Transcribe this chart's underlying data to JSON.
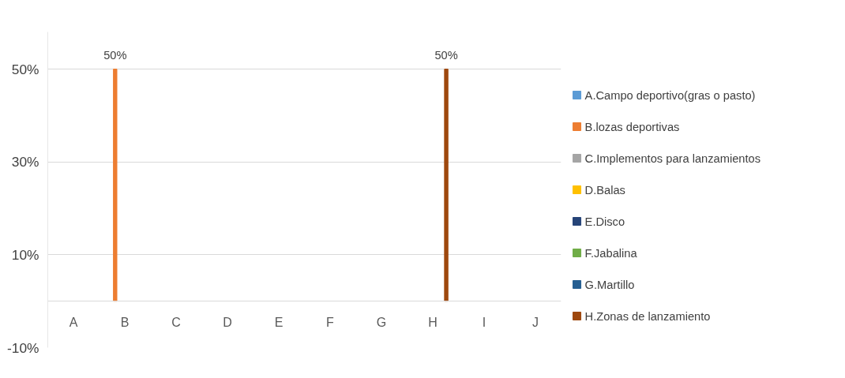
{
  "chart_data": {
    "type": "bar",
    "categories": [
      "A",
      "B",
      "C",
      "D",
      "E",
      "F",
      "G",
      "H",
      "I",
      "J"
    ],
    "series": [
      {
        "name": "A.Campo deportivo(gras o pasto)",
        "color": "#5b9bd5",
        "values": [
          null,
          null,
          null,
          null,
          null,
          null,
          null,
          null,
          null,
          null
        ]
      },
      {
        "name": "B.lozas deportivas",
        "color": "#ed7d31",
        "values": [
          null,
          50,
          null,
          null,
          null,
          null,
          null,
          null,
          null,
          null
        ],
        "value_labels": [
          null,
          "50%",
          null,
          null,
          null,
          null,
          null,
          null,
          null,
          null
        ]
      },
      {
        "name": "C.Implementos para lanzamientos",
        "color": "#a5a5a5",
        "values": [
          null,
          null,
          null,
          null,
          null,
          null,
          null,
          null,
          null,
          null
        ]
      },
      {
        "name": "D.Balas",
        "color": "#ffc000",
        "values": [
          null,
          null,
          null,
          null,
          null,
          null,
          null,
          null,
          null,
          null
        ]
      },
      {
        "name": "E.Disco",
        "color": "#264478",
        "values": [
          null,
          null,
          null,
          null,
          null,
          null,
          null,
          null,
          null,
          null
        ]
      },
      {
        "name": "F.Jabalina",
        "color": "#70ad47",
        "values": [
          null,
          null,
          null,
          null,
          null,
          null,
          null,
          null,
          null,
          null
        ]
      },
      {
        "name": "G.Martillo",
        "color": "#255e91",
        "values": [
          null,
          null,
          null,
          null,
          null,
          null,
          null,
          null,
          null,
          null
        ]
      },
      {
        "name": "H.Zonas de lanzamiento",
        "color": "#9e480e",
        "values": [
          null,
          null,
          null,
          null,
          null,
          null,
          null,
          50,
          null,
          null
        ],
        "value_labels": [
          null,
          null,
          null,
          null,
          null,
          null,
          null,
          "50%",
          null,
          null
        ]
      }
    ],
    "ylim": [
      -10,
      58
    ],
    "yticks": [
      {
        "value": -10,
        "label": "-10%"
      },
      {
        "value": 10,
        "label": "10%"
      },
      {
        "value": 30,
        "label": "30%"
      },
      {
        "value": 50,
        "label": "50%"
      }
    ],
    "grid": "y",
    "legend": "right"
  }
}
